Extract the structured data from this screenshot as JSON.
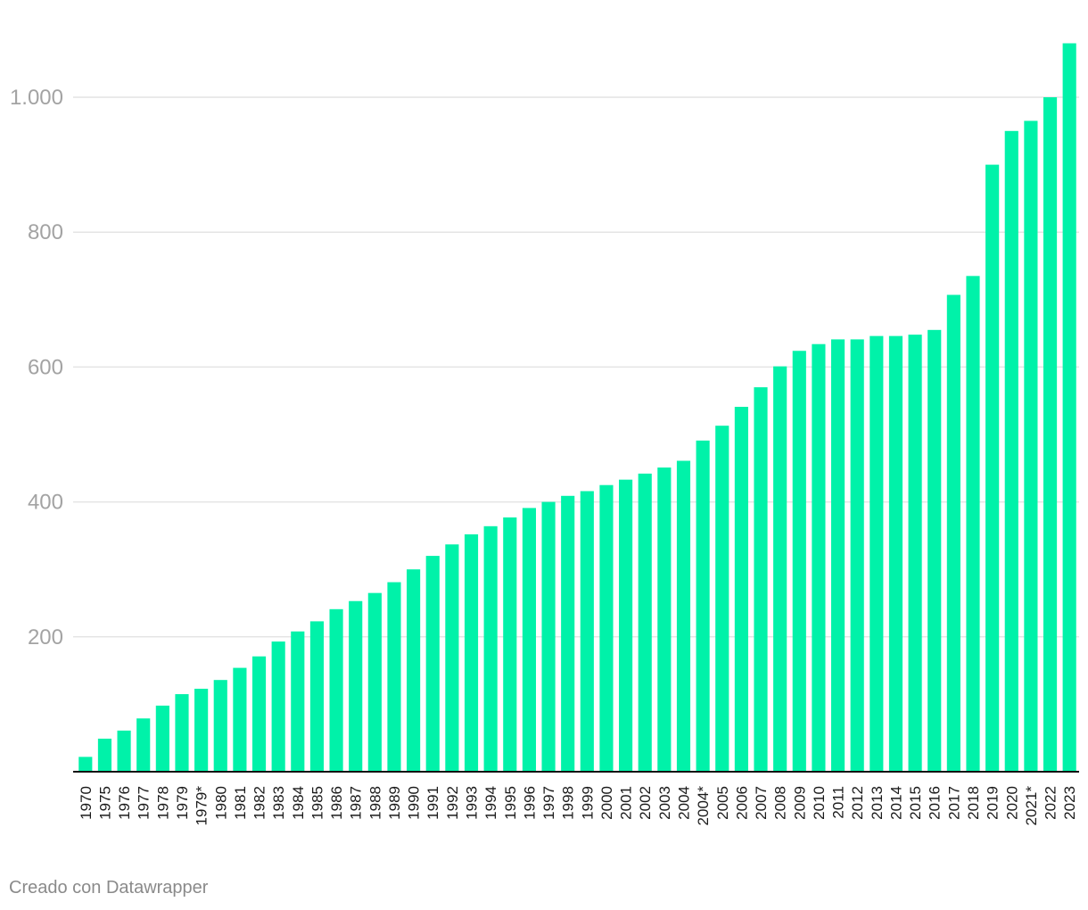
{
  "chart_data": {
    "type": "bar",
    "title": "",
    "xlabel": "",
    "ylabel": "",
    "ylim": [
      0,
      1080
    ],
    "grid": true,
    "yticks": [
      200,
      400,
      600,
      800,
      1000
    ],
    "ytick_labels": [
      "200",
      "400",
      "600",
      "800",
      "1.000"
    ],
    "bar_color": "#00f2a9",
    "categories": [
      "1970",
      "1975",
      "1976",
      "1977",
      "1978",
      "1979",
      "1979*",
      "1980",
      "1981",
      "1982",
      "1983",
      "1984",
      "1985",
      "1986",
      "1987",
      "1988",
      "1989",
      "1990",
      "1991",
      "1992",
      "1993",
      "1994",
      "1995",
      "1996",
      "1997",
      "1998",
      "1999",
      "2000",
      "2001",
      "2002",
      "2003",
      "2004",
      "2004*",
      "2005",
      "2006",
      "2007",
      "2008",
      "2009",
      "2010",
      "2011",
      "2012",
      "2013",
      "2014",
      "2015",
      "2016",
      "2017",
      "2018",
      "2019",
      "2020",
      "2021*",
      "2022",
      "2023"
    ],
    "values": [
      22,
      49,
      61,
      79,
      98,
      115,
      123,
      136,
      154,
      171,
      193,
      208,
      223,
      241,
      253,
      265,
      281,
      300,
      320,
      337,
      352,
      364,
      377,
      391,
      400,
      409,
      416,
      425,
      433,
      442,
      451,
      461,
      491,
      513,
      541,
      570,
      601,
      624,
      634,
      641,
      641,
      646,
      646,
      648,
      655,
      707,
      735,
      900,
      950,
      965,
      1000,
      1080
    ]
  },
  "footer": {
    "credit": "Creado con Datawrapper"
  }
}
